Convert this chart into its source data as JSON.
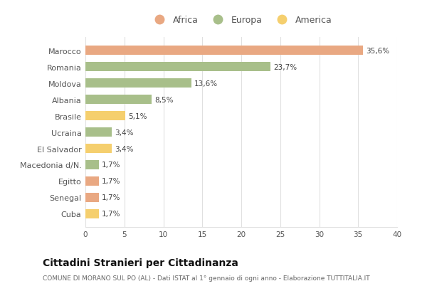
{
  "categories": [
    "Marocco",
    "Romania",
    "Moldova",
    "Albania",
    "Brasile",
    "Ucraina",
    "El Salvador",
    "Macedonia d/N.",
    "Egitto",
    "Senegal",
    "Cuba"
  ],
  "values": [
    35.6,
    23.7,
    13.6,
    8.5,
    5.1,
    3.4,
    3.4,
    1.7,
    1.7,
    1.7,
    1.7
  ],
  "labels": [
    "35,6%",
    "23,7%",
    "13,6%",
    "8,5%",
    "5,1%",
    "3,4%",
    "3,4%",
    "1,7%",
    "1,7%",
    "1,7%",
    "1,7%"
  ],
  "bar_colors": [
    "#e9a882",
    "#a8bf8a",
    "#a8bf8a",
    "#a8bf8a",
    "#f5cf6e",
    "#a8bf8a",
    "#f5cf6e",
    "#a8bf8a",
    "#e9a882",
    "#e9a882",
    "#f5cf6e"
  ],
  "legend": [
    {
      "label": "Africa",
      "color": "#e9a882"
    },
    {
      "label": "Europa",
      "color": "#a8bf8a"
    },
    {
      "label": "America",
      "color": "#f5cf6e"
    }
  ],
  "xlim": [
    0,
    40
  ],
  "xticks": [
    0,
    5,
    10,
    15,
    20,
    25,
    30,
    35,
    40
  ],
  "title": "Cittadini Stranieri per Cittadinanza",
  "subtitle": "COMUNE DI MORANO SUL PO (AL) - Dati ISTAT al 1° gennaio di ogni anno - Elaborazione TUTTITALIA.IT",
  "background_color": "#ffffff",
  "grid_color": "#e0e0e0"
}
